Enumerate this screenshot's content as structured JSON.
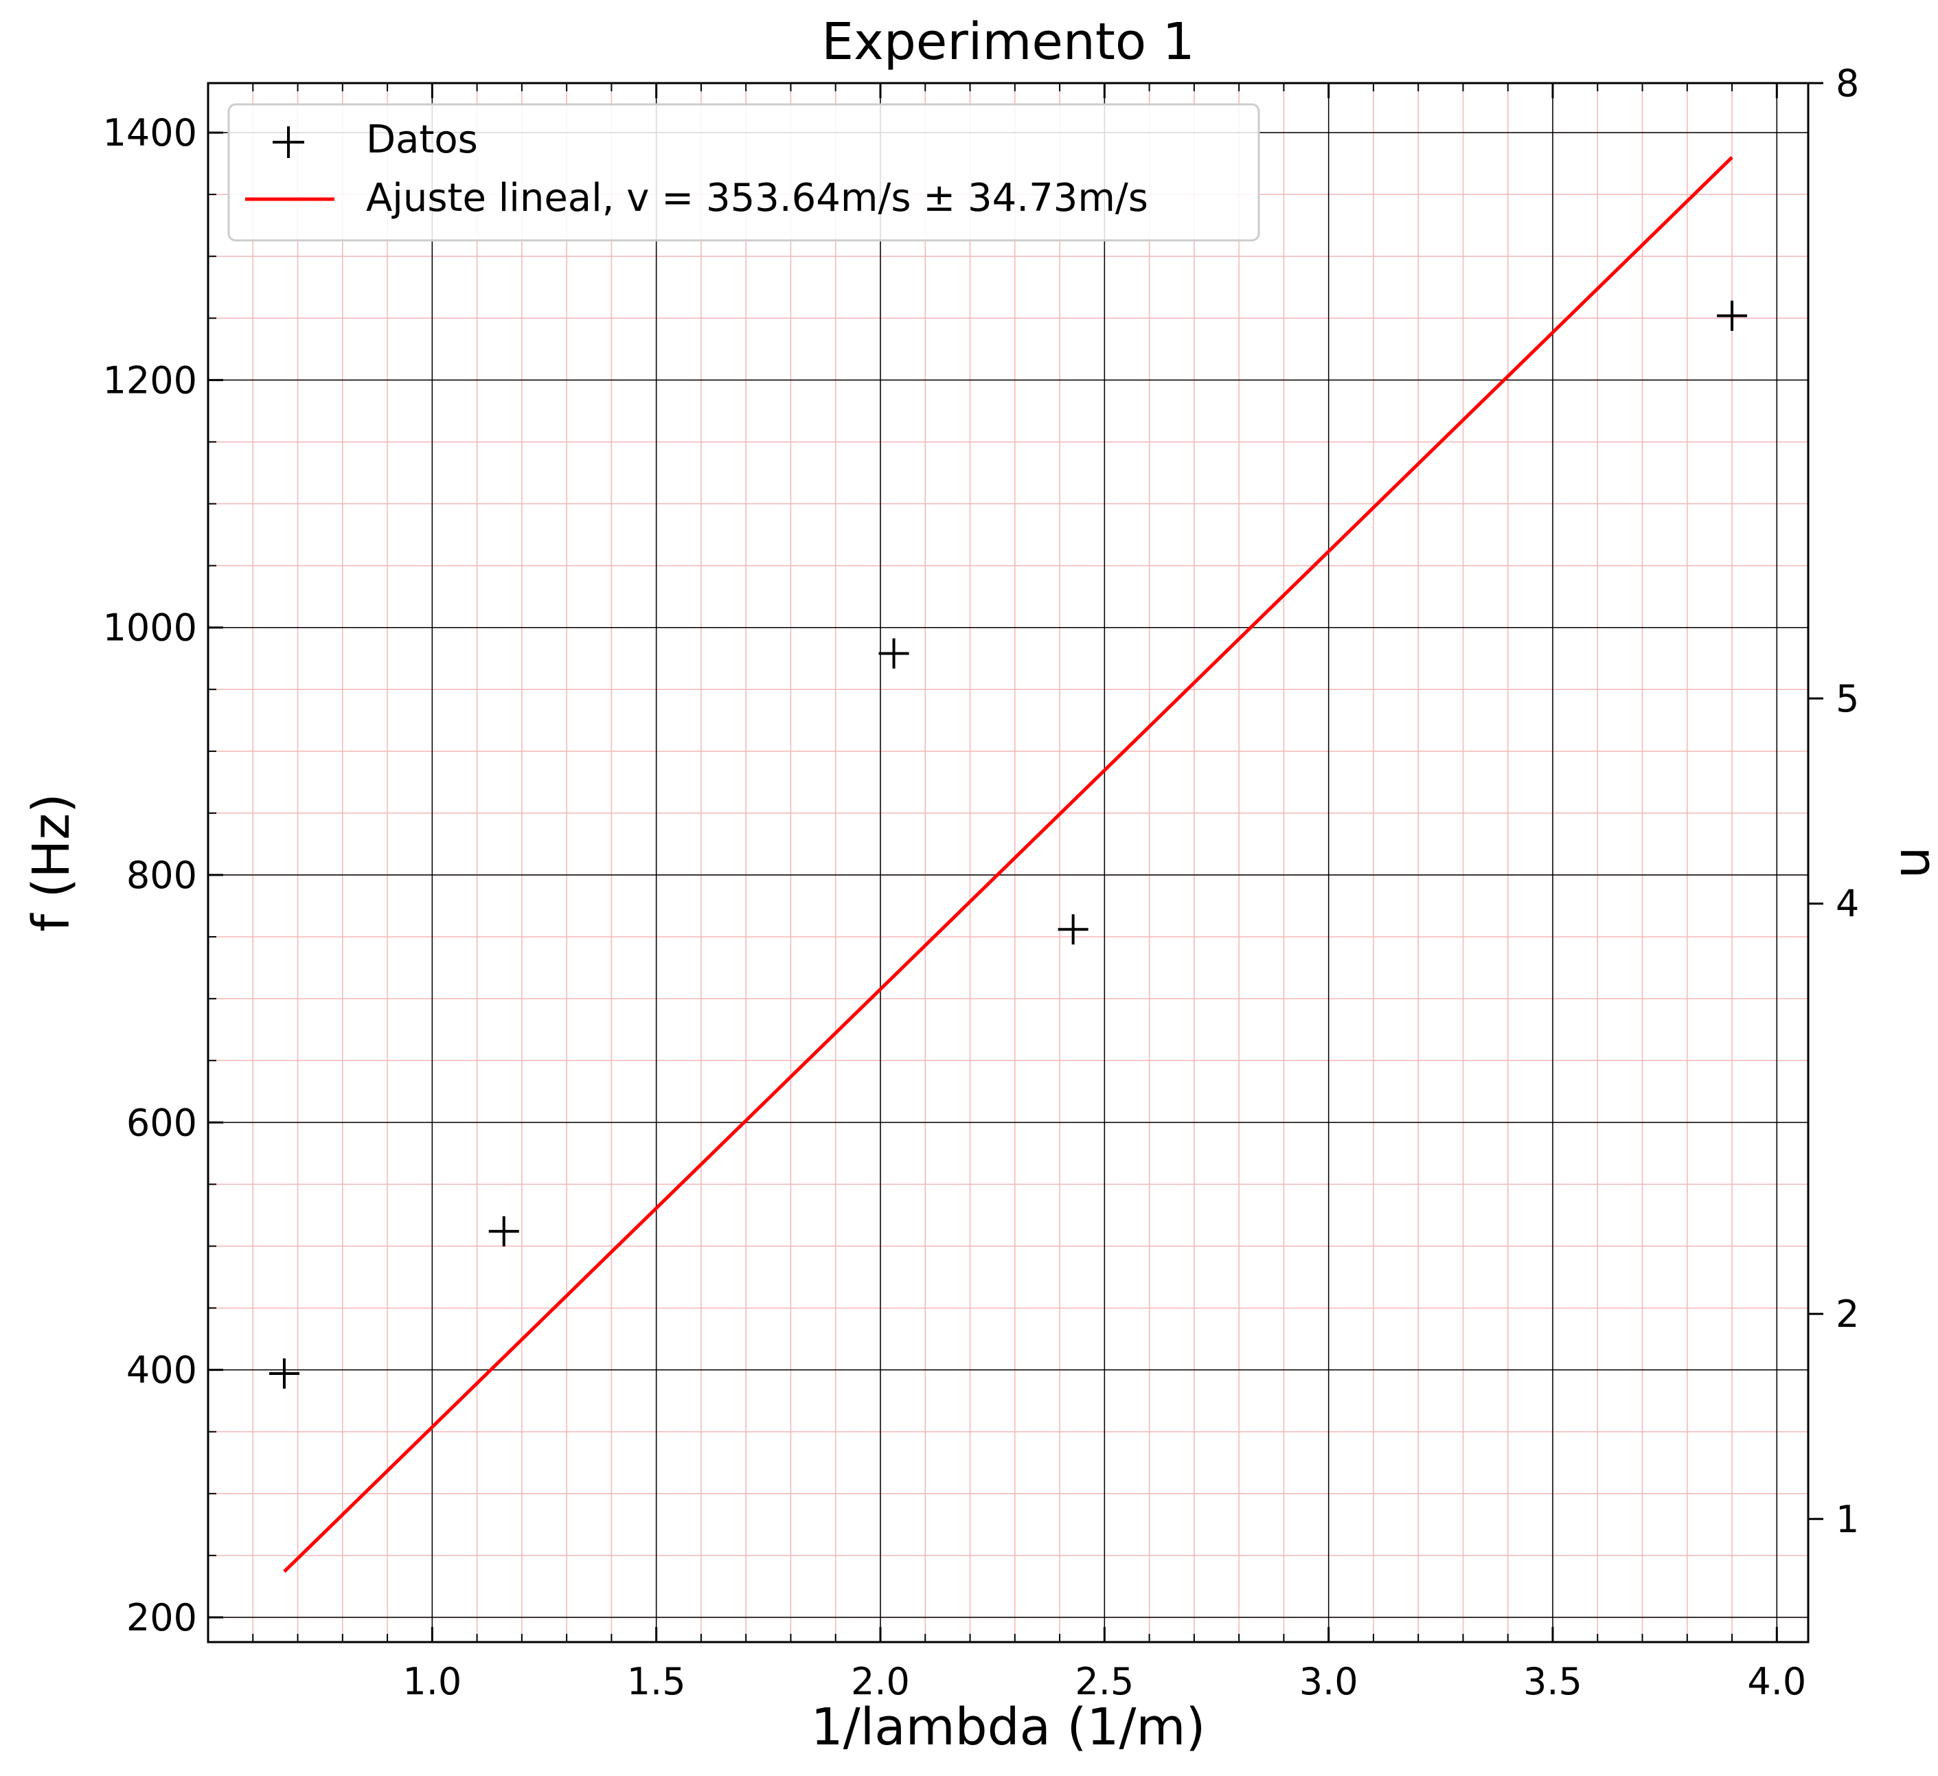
{
  "chart_data": {
    "type": "scatter",
    "title": "Experimento 1",
    "xlabel": "1/lambda (1/m)",
    "ylabel": "f (Hz)",
    "y2label": "n",
    "xlim": [
      0.5,
      4.07
    ],
    "ylim": [
      180,
      1440
    ],
    "xticks": [
      1.0,
      1.5,
      2.0,
      2.5,
      3.0,
      3.5,
      4.0
    ],
    "xtick_labels": [
      "1.0",
      "1.5",
      "2.0",
      "2.5",
      "3.0",
      "3.5",
      "4.0"
    ],
    "yticks": [
      200,
      400,
      600,
      800,
      1000,
      1200,
      1400
    ],
    "ytick_labels": [
      "200",
      "400",
      "600",
      "800",
      "1000",
      "1200",
      "1400"
    ],
    "y2ticks": [
      1,
      2,
      4,
      5,
      8
    ],
    "y2tick_labels": [
      "1",
      "2",
      "4",
      "5",
      "8"
    ],
    "y2lim": [
      0.4,
      8
    ],
    "grid": {
      "major": true,
      "minor": true,
      "major_color": "#000000",
      "minor_color": "#f4b6b6"
    },
    "legend_position": "top-left",
    "series": [
      {
        "name": "Datos",
        "kind": "scatter",
        "marker": "+",
        "color": "#000000",
        "x": [
          0.67,
          1.16,
          2.03,
          2.43,
          3.9
        ],
        "y": [
          397,
          512,
          979,
          756,
          1252
        ]
      },
      {
        "name": "Ajuste lineal, v = 353.64m/s ± 34.73m/s",
        "kind": "line",
        "color": "#ff0000",
        "x": [
          0.67,
          3.9
        ],
        "y": [
          237,
          1380
        ]
      }
    ]
  }
}
